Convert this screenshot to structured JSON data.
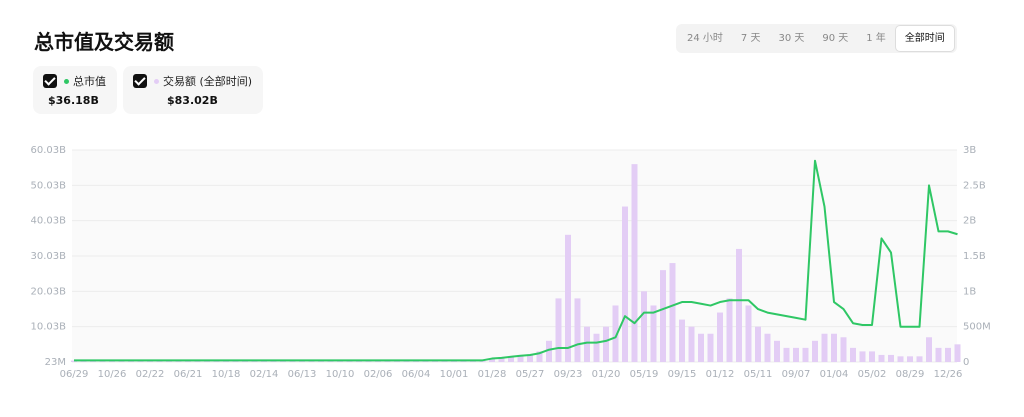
{
  "header": {
    "title": "总市值及交易额"
  },
  "range_options": [
    "24 小时",
    "7 天",
    "30 天",
    "90 天",
    "1 年",
    "全部时间"
  ],
  "summary": [
    "$36.18B",
    "$83.02B"
  ],
  "chart_data": {
    "type": "line_bar",
    "categories": [
      "06/29",
      null,
      null,
      null,
      "10/26",
      null,
      null,
      null,
      "02/22",
      null,
      null,
      null,
      "06/21",
      null,
      null,
      null,
      "10/18",
      null,
      null,
      null,
      "02/14",
      null,
      null,
      null,
      "06/13",
      null,
      null,
      null,
      "10/10",
      null,
      null,
      null,
      "02/06",
      null,
      null,
      null,
      "06/04",
      null,
      null,
      null,
      "10/01",
      null,
      null,
      null,
      "01/28",
      null,
      null,
      null,
      "05/27",
      null,
      null,
      null,
      "09/23",
      null,
      null,
      null,
      "01/20",
      null,
      null,
      null,
      "05/19",
      null,
      null,
      null,
      "09/15",
      null,
      null,
      null,
      "01/12",
      null,
      null,
      null,
      "05/11",
      null,
      null,
      null,
      "09/07",
      null,
      null,
      null,
      "01/04",
      null,
      null,
      null,
      "05/02",
      null,
      null,
      null,
      "08/29",
      null,
      null,
      null,
      "12/26",
      null
    ],
    "series": [
      {
        "name": "总市值",
        "type": "line",
        "color": "#2fc765",
        "values": [
          0.5,
          0.5,
          0.5,
          0.5,
          0.5,
          0.5,
          0.5,
          0.5,
          0.5,
          0.5,
          0.5,
          0.5,
          0.5,
          0.5,
          0.5,
          0.5,
          0.5,
          0.5,
          0.5,
          0.5,
          0.5,
          0.5,
          0.5,
          0.5,
          0.5,
          0.5,
          0.5,
          0.5,
          0.5,
          0.5,
          0.5,
          0.5,
          0.5,
          0.5,
          0.5,
          0.5,
          0.5,
          0.5,
          0.5,
          0.5,
          0.5,
          0.5,
          0.5,
          0.5,
          1,
          1.2,
          1.5,
          1.8,
          2,
          2.5,
          3.5,
          4,
          4,
          5,
          5.5,
          5.5,
          6,
          7,
          13,
          11,
          14,
          14,
          15,
          16,
          17,
          17,
          16.5,
          16,
          17,
          17.5,
          17.5,
          17.5,
          15,
          14,
          13.5,
          13,
          12.5,
          12,
          57,
          44,
          17,
          15,
          11,
          10.5,
          10.5,
          35,
          31,
          10,
          10,
          10,
          50,
          37,
          37,
          36.18
        ]
      },
      {
        "name": "交易额 (全部时间)",
        "type": "bar",
        "axis": "y2",
        "color": "#e3cdf5",
        "values": [
          0.02,
          0.02,
          0.02,
          0.02,
          0.02,
          0.02,
          0.02,
          0.02,
          0.02,
          0.02,
          0.02,
          0.02,
          0.02,
          0.02,
          0.02,
          0.02,
          0.02,
          0.02,
          0.02,
          0.02,
          0.02,
          0.02,
          0.02,
          0.02,
          0.02,
          0.02,
          0.02,
          0.02,
          0.02,
          0.02,
          0.02,
          0.02,
          0.02,
          0.02,
          0.02,
          0.02,
          0.02,
          0.02,
          0.02,
          0.02,
          0.02,
          0.02,
          0.02,
          0.02,
          0.05,
          0.06,
          0.08,
          0.1,
          0.1,
          0.15,
          0.3,
          0.9,
          1.8,
          0.9,
          0.5,
          0.4,
          0.5,
          0.8,
          2.2,
          2.8,
          1.0,
          0.8,
          1.3,
          1.4,
          0.6,
          0.5,
          0.4,
          0.4,
          0.7,
          0.9,
          1.6,
          0.8,
          0.5,
          0.4,
          0.3,
          0.2,
          0.2,
          0.2,
          0.3,
          0.4,
          0.4,
          0.35,
          0.2,
          0.15,
          0.15,
          0.1,
          0.1,
          0.08,
          0.08,
          0.08,
          0.35,
          0.2,
          0.2,
          0.25
        ]
      }
    ],
    "ylim": [
      0.023,
      60.03
    ],
    "yticks": [
      {
        "value": 0.023,
        "label": "23M"
      },
      {
        "value": 10.03,
        "label": "10.03B"
      },
      {
        "value": 20.03,
        "label": "20.03B"
      },
      {
        "value": 30.03,
        "label": "30.03B"
      },
      {
        "value": 40.03,
        "label": "40.03B"
      },
      {
        "value": 50.03,
        "label": "50.03B"
      },
      {
        "value": 60.03,
        "label": "60.03B"
      }
    ],
    "y2lim": [
      0,
      3
    ],
    "y2ticks": [
      0,
      {
        "value": 0.5,
        "label": "500M"
      },
      {
        "value": 1,
        "label": "1B"
      },
      {
        "value": 1.5,
        "label": "1.5B"
      },
      {
        "value": 2,
        "label": "2B"
      },
      {
        "value": 2.5,
        "label": "2.5B"
      },
      {
        "value": 3,
        "label": "3B"
      }
    ],
    "grid": true
  }
}
